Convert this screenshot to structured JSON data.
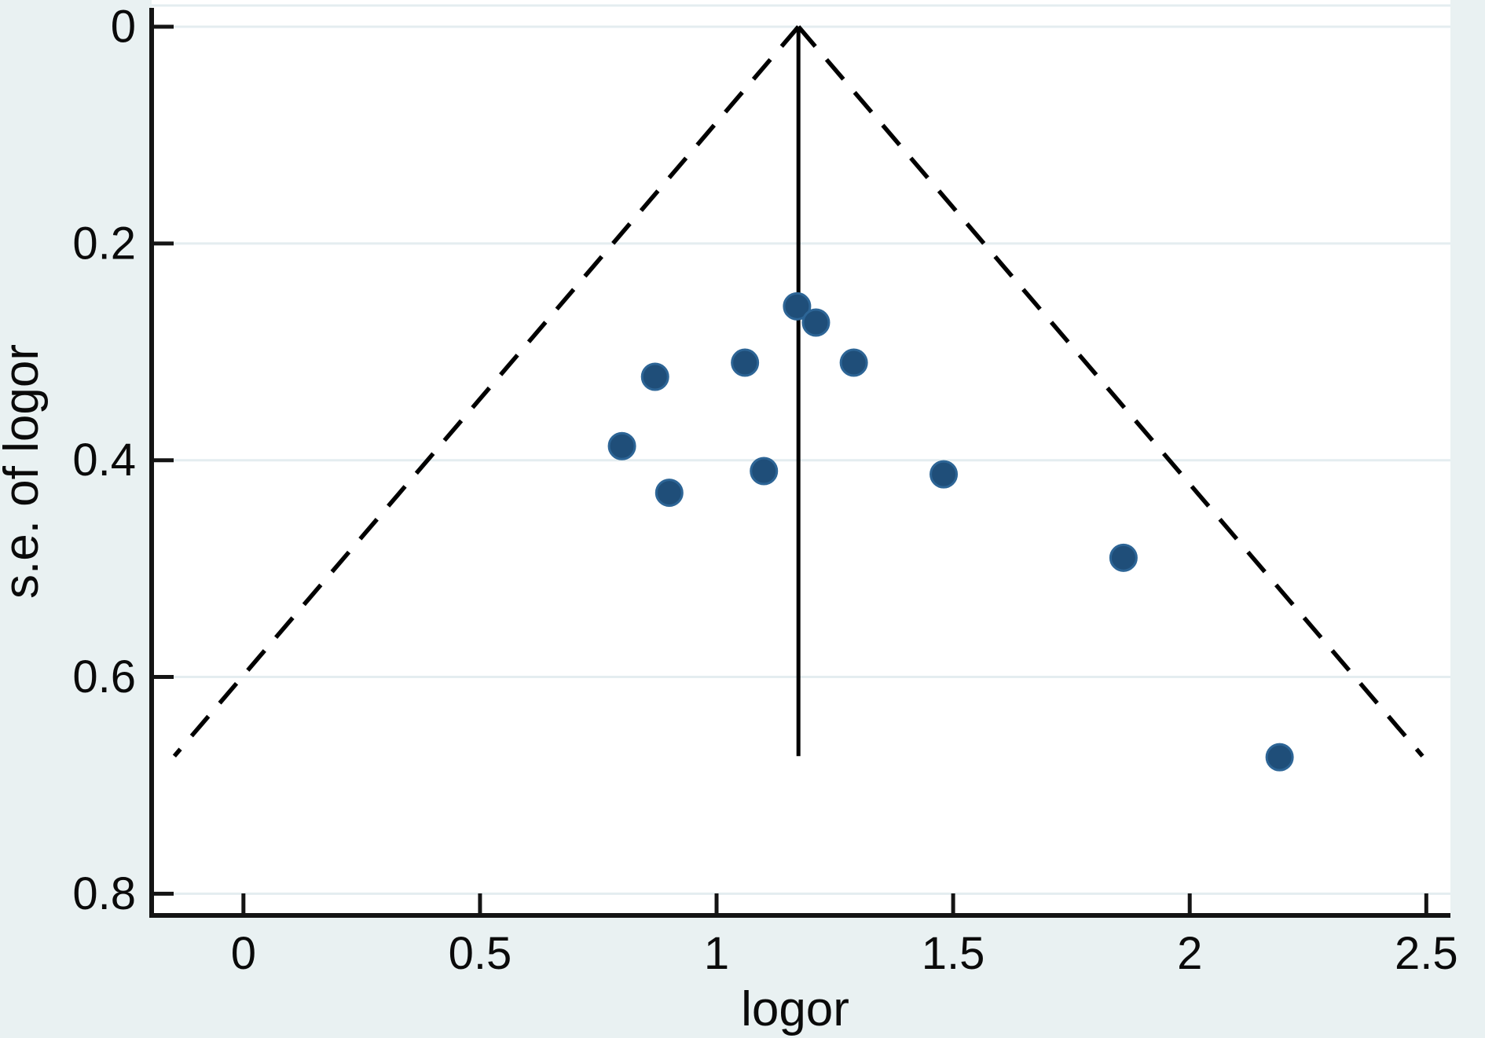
{
  "chart_data": {
    "type": "scatter",
    "subtype": "funnel-plot",
    "title": "",
    "xlabel": "logor",
    "ylabel": "s.e. of logor",
    "x_tick_labels": [
      "0",
      "0.5",
      "1",
      "1.5",
      "2",
      "2.5"
    ],
    "x_tick_values": [
      0,
      0.5,
      1,
      1.5,
      2,
      2.5
    ],
    "y_tick_labels": [
      "0",
      "0.2",
      "0.4",
      "0.6",
      "0.8"
    ],
    "y_tick_values": [
      0,
      0.2,
      0.4,
      0.6,
      0.8
    ],
    "xlim": [
      -0.194,
      2.551
    ],
    "ylim": [
      -0.021,
      0.82
    ],
    "y_axis_inverted": true,
    "grid": true,
    "legend_position": "none",
    "points": [
      {
        "logor": 1.17,
        "se": 0.258
      },
      {
        "logor": 1.21,
        "se": 0.273
      },
      {
        "logor": 1.29,
        "se": 0.31
      },
      {
        "logor": 1.06,
        "se": 0.31
      },
      {
        "logor": 0.87,
        "se": 0.323
      },
      {
        "logor": 0.8,
        "se": 0.387
      },
      {
        "logor": 1.1,
        "se": 0.41
      },
      {
        "logor": 0.9,
        "se": 0.43
      },
      {
        "logor": 1.48,
        "se": 0.413
      },
      {
        "logor": 1.86,
        "se": 0.49
      },
      {
        "logor": 2.19,
        "se": 0.674
      }
    ],
    "pooled_effect_line": {
      "x": 1.173,
      "se_top": 0.0,
      "se_bottom": 0.673
    },
    "funnel_ci_lines": {
      "apex_x": 1.173,
      "apex_se": 0.0,
      "max_se": 0.673,
      "left_end_x": -0.146,
      "right_end_x": 2.492,
      "z_multiplier": 1.96,
      "style": "dashed"
    },
    "colors": {
      "background": "#e9f1f2",
      "plot_background": "#ffffff",
      "grid": "#e4edf0",
      "axis": "#141414",
      "text": "#0a0a0a",
      "marker_fill": "#1f4e79",
      "marker_stroke": "#2d6596",
      "reference_lines": "#000000"
    }
  }
}
